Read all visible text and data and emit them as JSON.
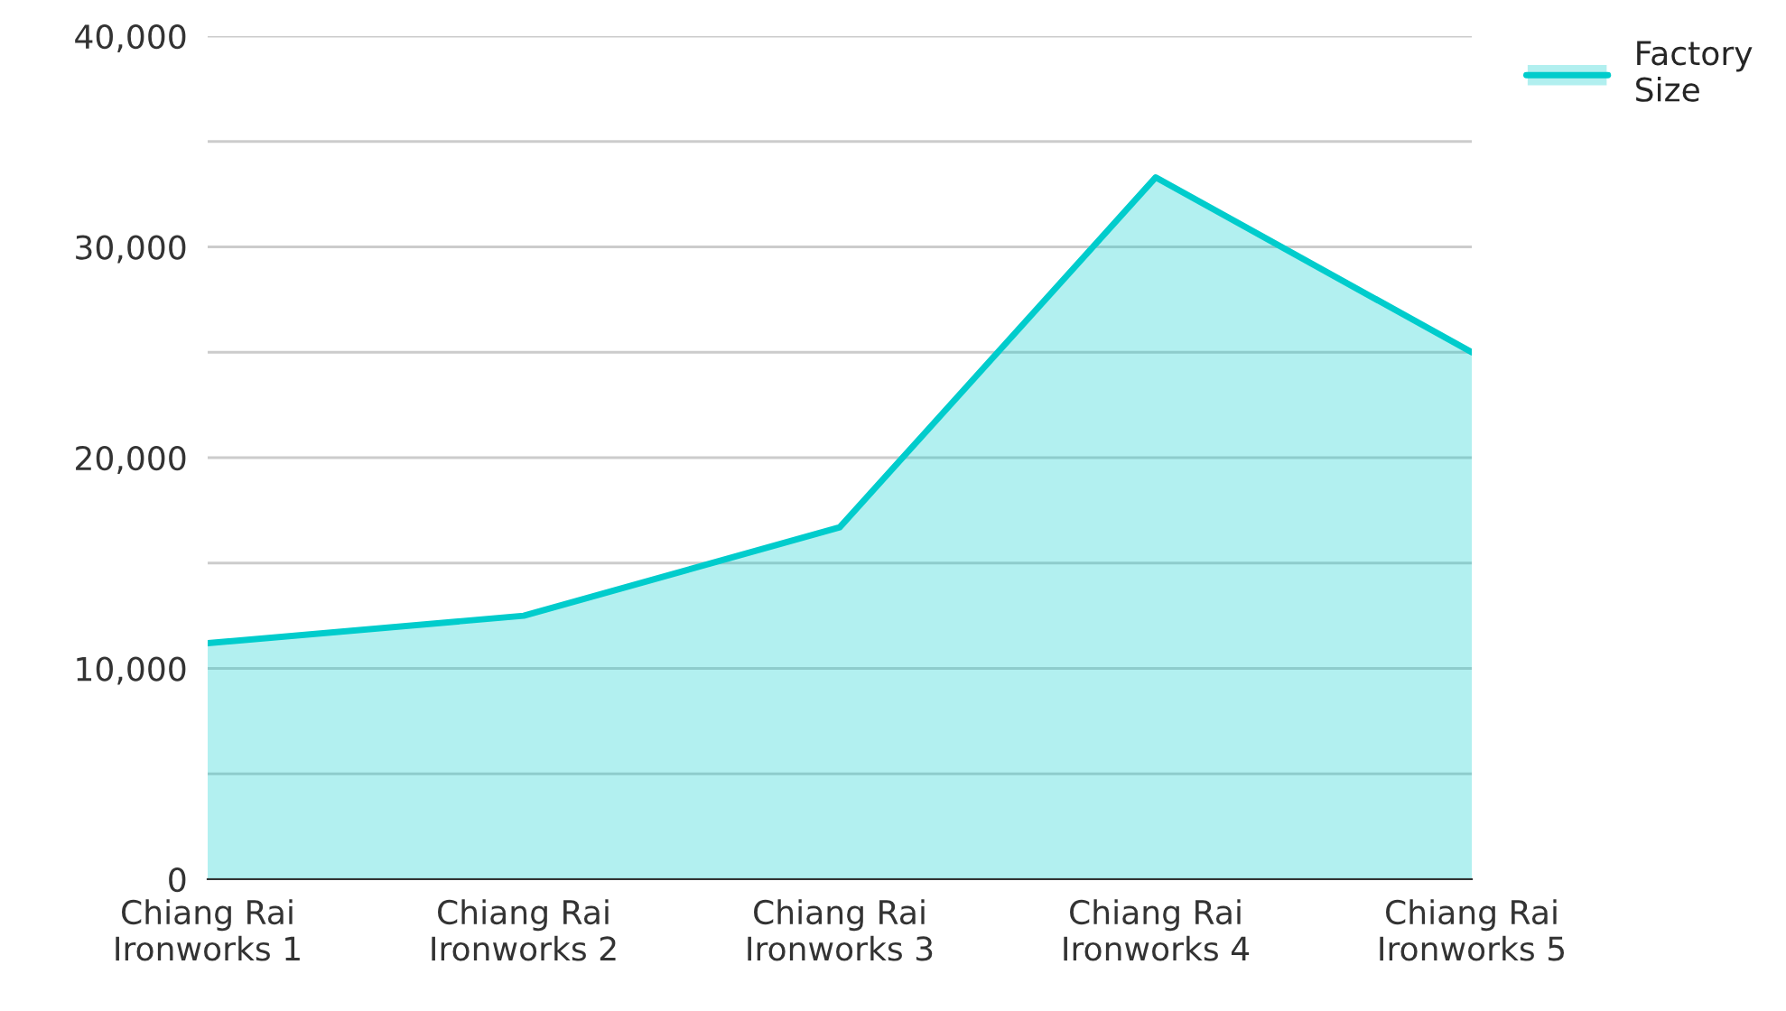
{
  "chart_data": {
    "type": "area",
    "categories": [
      "Chiang Rai Ironworks 1",
      "Chiang Rai Ironworks 2",
      "Chiang Rai Ironworks 3",
      "Chiang Rai Ironworks 4",
      "Chiang Rai Ironworks 5"
    ],
    "series": [
      {
        "name": "Factory Size",
        "color": "#00cccc",
        "values": [
          11200,
          12500,
          16700,
          33300,
          25000
        ]
      }
    ],
    "ylim": [
      0,
      40000
    ],
    "yticks": [
      0,
      {
        "value": 5000,
        "label": null
      },
      {
        "value": 10000,
        "label": "10,000"
      },
      {
        "value": 15000,
        "label": null
      },
      {
        "value": 20000,
        "label": "20,000"
      },
      {
        "value": 25000,
        "label": null
      },
      {
        "value": 30000,
        "label": "30,000"
      },
      {
        "value": 35000,
        "label": null
      },
      {
        "value": 40000,
        "label": "40,000"
      }
    ],
    "grid": "y",
    "legend": "top right"
  }
}
